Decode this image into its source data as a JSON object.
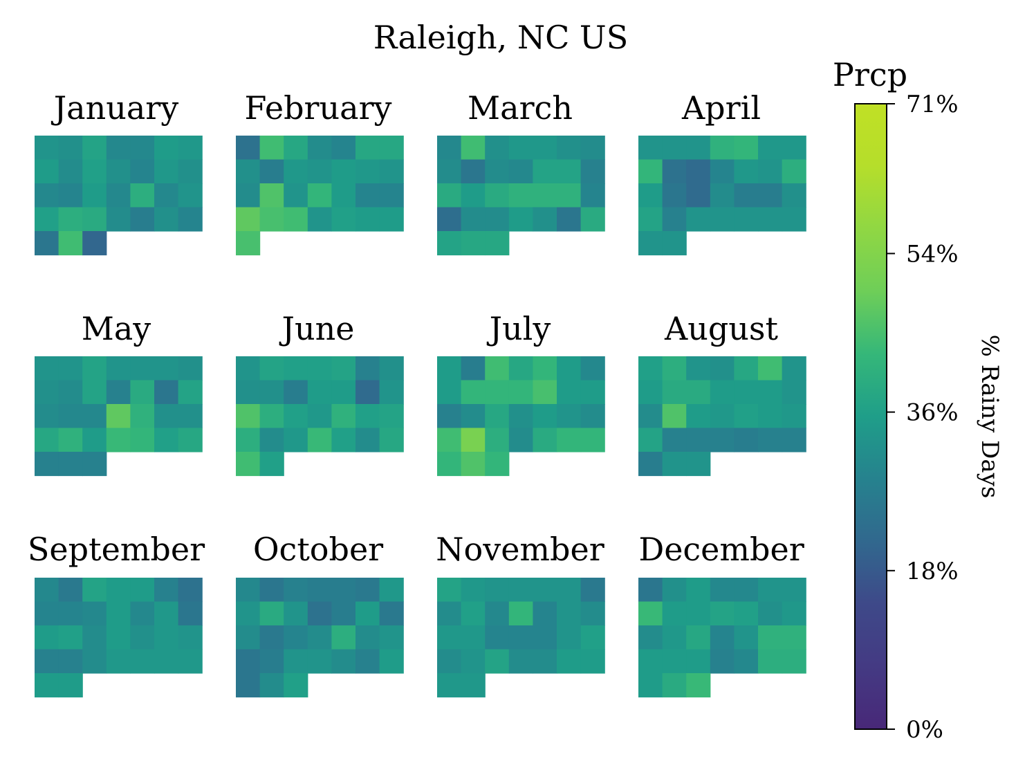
{
  "chart_data": {
    "type": "heatmap",
    "title": "Raleigh, NC US",
    "colorbar": {
      "title": "Prcp",
      "label": "% Rainy Days",
      "colormap": "viridis",
      "range": [
        0,
        71
      ],
      "ticks": [
        0,
        18,
        36,
        54,
        71
      ],
      "tick_labels": [
        "0%",
        "18%",
        "36%",
        "54%",
        "71%"
      ]
    },
    "months": [
      {
        "name": "January",
        "values": [
          [
            33,
            32,
            37,
            30,
            30,
            35,
            34
          ],
          [
            35,
            31,
            36,
            32,
            29,
            34,
            32
          ],
          [
            30,
            29,
            35,
            30,
            40,
            30,
            33
          ],
          [
            36,
            40,
            39,
            31,
            27,
            32,
            29
          ],
          [
            25,
            44,
            21
          ]
        ]
      },
      {
        "name": "February",
        "values": [
          [
            24,
            44,
            38,
            31,
            29,
            38,
            38
          ],
          [
            32,
            27,
            34,
            33,
            35,
            34,
            33
          ],
          [
            31,
            46,
            33,
            42,
            35,
            29,
            29
          ],
          [
            48,
            45,
            44,
            33,
            36,
            35,
            35
          ],
          [
            45
          ]
        ]
      },
      {
        "name": "March",
        "values": [
          [
            30,
            44,
            32,
            34,
            34,
            32,
            31
          ],
          [
            31,
            25,
            31,
            30,
            37,
            37,
            28
          ],
          [
            39,
            35,
            39,
            41,
            41,
            41,
            29
          ],
          [
            23,
            31,
            31,
            35,
            32,
            25,
            39
          ],
          [
            37,
            38,
            38
          ]
        ]
      },
      {
        "name": "April",
        "values": [
          [
            33,
            33,
            33,
            41,
            42,
            34,
            34
          ],
          [
            42,
            24,
            22,
            29,
            34,
            33,
            40
          ],
          [
            35,
            25,
            22,
            31,
            27,
            27,
            32
          ],
          [
            37,
            28,
            33,
            33,
            33,
            33,
            33
          ],
          [
            33,
            33
          ]
        ]
      },
      {
        "name": "May",
        "values": [
          [
            33,
            33,
            37,
            33,
            33,
            33,
            32
          ],
          [
            32,
            31,
            37,
            28,
            39,
            25,
            37
          ],
          [
            31,
            30,
            30,
            48,
            41,
            32,
            32
          ],
          [
            38,
            41,
            35,
            43,
            42,
            36,
            38
          ],
          [
            28,
            28,
            28
          ]
        ]
      },
      {
        "name": "June",
        "values": [
          [
            33,
            37,
            36,
            36,
            37,
            28,
            32
          ],
          [
            32,
            32,
            27,
            35,
            35,
            22,
            33
          ],
          [
            46,
            40,
            36,
            34,
            41,
            36,
            37
          ],
          [
            40,
            31,
            34,
            43,
            36,
            31,
            38
          ],
          [
            44,
            36
          ]
        ]
      },
      {
        "name": "July",
        "values": [
          [
            35,
            27,
            44,
            38,
            42,
            35,
            30
          ],
          [
            35,
            42,
            42,
            42,
            45,
            35,
            35
          ],
          [
            28,
            31,
            38,
            32,
            35,
            33,
            31
          ],
          [
            44,
            52,
            40,
            31,
            39,
            42,
            42
          ],
          [
            42,
            46,
            42
          ]
        ]
      },
      {
        "name": "August",
        "values": [
          [
            36,
            40,
            33,
            32,
            38,
            44,
            33
          ],
          [
            35,
            39,
            39,
            35,
            35,
            35,
            33
          ],
          [
            31,
            46,
            35,
            34,
            36,
            35,
            34
          ],
          [
            37,
            28,
            28,
            28,
            27,
            28,
            28
          ],
          [
            27,
            33,
            33
          ]
        ]
      },
      {
        "name": "September",
        "values": [
          [
            30,
            26,
            37,
            35,
            35,
            28,
            24
          ],
          [
            29,
            29,
            30,
            35,
            30,
            34,
            25
          ],
          [
            35,
            36,
            31,
            35,
            32,
            34,
            33
          ],
          [
            28,
            28,
            31,
            34,
            34,
            34,
            34
          ],
          [
            35,
            35
          ]
        ]
      },
      {
        "name": "October",
        "values": [
          [
            30,
            25,
            28,
            27,
            27,
            26,
            34
          ],
          [
            33,
            39,
            33,
            24,
            27,
            35,
            26
          ],
          [
            31,
            26,
            29,
            31,
            40,
            31,
            33
          ],
          [
            25,
            27,
            33,
            33,
            31,
            28,
            35
          ],
          [
            25,
            31,
            36
          ]
        ]
      },
      {
        "name": "November",
        "values": [
          [
            37,
            34,
            33,
            33,
            33,
            33,
            26
          ],
          [
            31,
            36,
            30,
            42,
            29,
            33,
            31
          ],
          [
            34,
            34,
            29,
            29,
            29,
            33,
            36
          ],
          [
            31,
            33,
            37,
            31,
            31,
            35,
            35
          ],
          [
            34,
            34
          ]
        ]
      },
      {
        "name": "December",
        "values": [
          [
            25,
            32,
            35,
            30,
            30,
            33,
            33
          ],
          [
            43,
            35,
            35,
            37,
            36,
            32,
            34
          ],
          [
            31,
            34,
            38,
            29,
            33,
            41,
            41
          ],
          [
            35,
            35,
            35,
            28,
            30,
            40,
            40
          ],
          [
            35,
            39,
            43
          ]
        ]
      }
    ]
  }
}
